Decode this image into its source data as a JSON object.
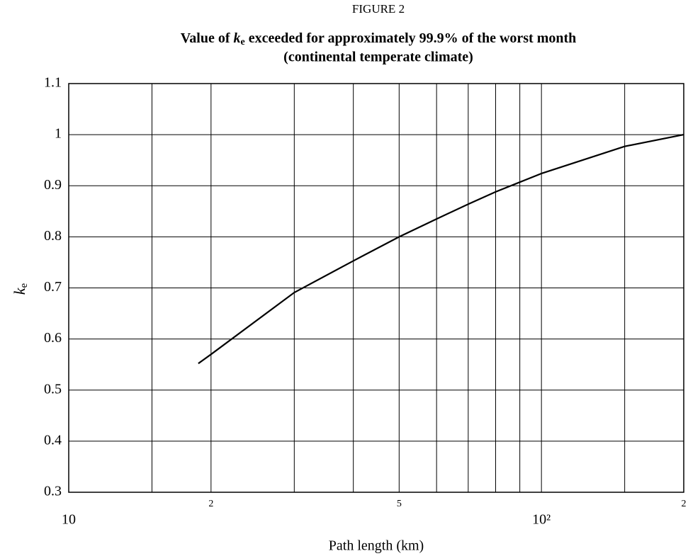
{
  "chart_data": {
    "type": "line",
    "figure_label": "FIGURE 2",
    "title": {
      "prefix": "Value of ",
      "symbol": "k",
      "subscript": "e",
      "suffix": " exceeded for approximately 99.9% of the worst month"
    },
    "subtitle": "(continental temperate climate)",
    "xlabel": "Path length (km)",
    "ylabel": {
      "symbol": "k",
      "subscript": "e"
    },
    "xscale": "log",
    "xlim": [
      10,
      200
    ],
    "ylim": [
      0.3,
      1.1
    ],
    "xticks": [
      10,
      {
        "value": 20,
        "label": "2"
      },
      {
        "value": 50,
        "label": "5"
      },
      {
        "value": 100,
        "label": "10²"
      },
      {
        "value": 200,
        "label": "2"
      }
    ],
    "xminor": [
      15,
      30,
      40,
      60,
      70,
      80,
      90,
      150
    ],
    "yticks": [
      0.3,
      0.4,
      0.5,
      0.6,
      0.7,
      0.8,
      0.9,
      1,
      1.1
    ],
    "grid": true,
    "color": "#000000",
    "x": [
      18.8,
      20,
      30,
      40,
      50,
      60,
      70,
      80,
      90,
      100,
      150,
      200
    ],
    "values": [
      0.552,
      0.57,
      0.691,
      0.753,
      0.8,
      0.835,
      0.864,
      0.888,
      0.907,
      0.924,
      0.977,
      1.0
    ]
  }
}
